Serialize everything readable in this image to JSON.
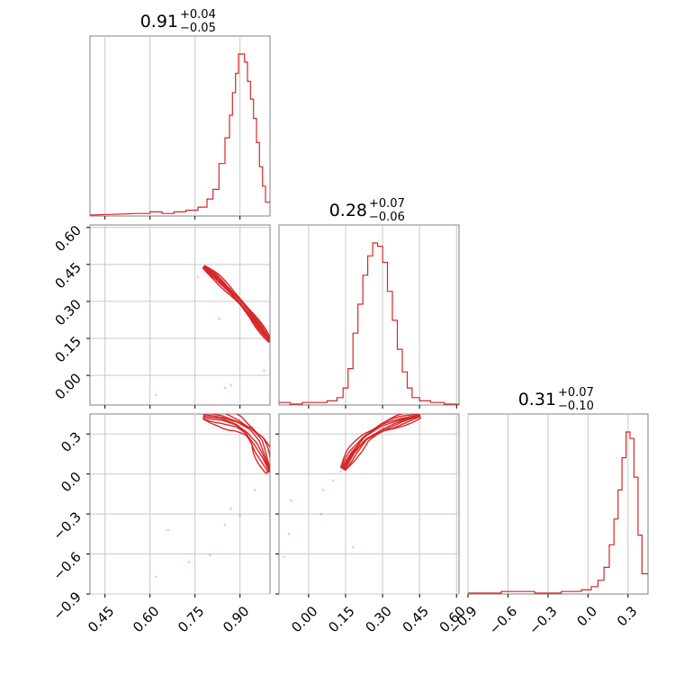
{
  "accent_color": "#d62728",
  "chart_data": {
    "type": "corner",
    "parameters": [
      "p1",
      "p2",
      "p3"
    ],
    "grid": true,
    "titles": [
      {
        "value": "0.91",
        "plus": "+0.04",
        "minus": "−0.05"
      },
      {
        "value": "0.28",
        "plus": "+0.07",
        "minus": "−0.06"
      },
      {
        "value": "0.31",
        "plus": "+0.07",
        "minus": "−0.10"
      }
    ],
    "axes": {
      "p1": {
        "range": [
          0.4,
          1.0
        ],
        "ticks": [
          0.45,
          0.6,
          0.75,
          0.9
        ],
        "ticklabels": [
          "0.45",
          "0.60",
          "0.75",
          "0.90"
        ]
      },
      "p2": {
        "range": [
          -0.12,
          0.61
        ],
        "ticks": [
          0.0,
          0.15,
          0.3,
          0.45,
          0.6
        ],
        "ticklabels": [
          "0.00",
          "0.15",
          "0.30",
          "0.45",
          "0.60"
        ],
        "y_ticklabels": [
          "0.00",
          "0.15",
          "0.30",
          "0.45",
          "0.60"
        ]
      },
      "p3": {
        "range": [
          -0.9,
          0.45
        ],
        "ticks": [
          -0.9,
          -0.6,
          -0.3,
          0.0,
          0.3
        ],
        "ticklabels": [
          "−0.9",
          "−0.6",
          "−0.3",
          "0.0",
          "0.3"
        ]
      }
    },
    "histograms": [
      {
        "param": "p1",
        "x": [
          0.58,
          0.62,
          0.66,
          0.7,
          0.74,
          0.78,
          0.8,
          0.82,
          0.84,
          0.86,
          0.87,
          0.88,
          0.89,
          0.9,
          0.91,
          0.92,
          0.93,
          0.94,
          0.95,
          0.96,
          0.97,
          0.98,
          0.99
        ],
        "density": [
          0.01,
          0.02,
          0.01,
          0.02,
          0.03,
          0.05,
          0.1,
          0.16,
          0.32,
          0.48,
          0.62,
          0.76,
          0.88,
          1.0,
          1.0,
          0.95,
          0.83,
          0.72,
          0.6,
          0.45,
          0.3,
          0.18,
          0.08
        ]
      },
      {
        "param": "p2",
        "x": [
          -0.1,
          -0.05,
          0.0,
          0.05,
          0.1,
          0.13,
          0.15,
          0.17,
          0.19,
          0.21,
          0.23,
          0.25,
          0.27,
          0.29,
          0.31,
          0.33,
          0.35,
          0.37,
          0.39,
          0.41,
          0.43,
          0.47,
          0.52,
          0.58
        ],
        "density": [
          0.01,
          0.0,
          0.01,
          0.01,
          0.02,
          0.04,
          0.1,
          0.22,
          0.44,
          0.62,
          0.8,
          0.92,
          1.0,
          0.98,
          0.88,
          0.7,
          0.52,
          0.34,
          0.2,
          0.1,
          0.04,
          0.02,
          0.01,
          0.0
        ]
      },
      {
        "param": "p3",
        "x": [
          -0.88,
          -0.7,
          -0.6,
          -0.5,
          -0.3,
          -0.1,
          0.0,
          0.05,
          0.1,
          0.14,
          0.18,
          0.21,
          0.24,
          0.27,
          0.3,
          0.33,
          0.36,
          0.39,
          0.42
        ],
        "density": [
          0.0,
          0.0,
          0.01,
          0.01,
          0.0,
          0.01,
          0.02,
          0.04,
          0.08,
          0.16,
          0.3,
          0.46,
          0.64,
          0.84,
          1.0,
          0.96,
          0.72,
          0.36,
          0.12
        ]
      }
    ],
    "contours": [
      {
        "x": "p1",
        "y": "p2",
        "ridge": [
          [
            0.78,
            0.44
          ],
          [
            0.82,
            0.4
          ],
          [
            0.86,
            0.35
          ],
          [
            0.9,
            0.3
          ],
          [
            0.94,
            0.24
          ],
          [
            0.97,
            0.19
          ],
          [
            1.0,
            0.14
          ]
        ],
        "levels": [
          0.018,
          0.012,
          0.007,
          0.003
        ]
      },
      {
        "x": "p1",
        "y": "p3",
        "ridge": [
          [
            0.78,
            0.44
          ],
          [
            0.84,
            0.42
          ],
          [
            0.89,
            0.38
          ],
          [
            0.93,
            0.32
          ],
          [
            0.96,
            0.24
          ],
          [
            0.98,
            0.14
          ],
          [
            1.0,
            0.02
          ]
        ],
        "levels": [
          0.045,
          0.03,
          0.018,
          0.008
        ]
      },
      {
        "x": "p2",
        "y": "p3",
        "ridge": [
          [
            0.14,
            0.04
          ],
          [
            0.18,
            0.16
          ],
          [
            0.23,
            0.27
          ],
          [
            0.3,
            0.35
          ],
          [
            0.37,
            0.4
          ],
          [
            0.45,
            0.44
          ]
        ],
        "levels": [
          0.03,
          0.02,
          0.012,
          0.006
        ]
      }
    ],
    "scatter": [
      {
        "x": "p1",
        "y": "p2",
        "points": [
          [
            0.78,
            0.44
          ],
          [
            0.8,
            0.43
          ],
          [
            0.62,
            -0.08
          ],
          [
            0.85,
            -0.05
          ],
          [
            0.87,
            -0.04
          ],
          [
            0.83,
            0.23
          ],
          [
            0.76,
            0.4
          ],
          [
            0.81,
            0.42
          ],
          [
            0.98,
            0.02
          ]
        ]
      },
      {
        "x": "p1",
        "y": "p3",
        "points": [
          [
            0.62,
            -0.77
          ],
          [
            0.66,
            -0.42
          ],
          [
            0.73,
            -0.66
          ],
          [
            0.8,
            -0.61
          ],
          [
            0.85,
            -0.38
          ],
          [
            0.87,
            -0.26
          ],
          [
            0.9,
            -0.31
          ],
          [
            0.95,
            -0.12
          ],
          [
            0.99,
            0.0
          ],
          [
            0.82,
            0.44
          ]
        ]
      },
      {
        "x": "p2",
        "y": "p3",
        "points": [
          [
            -0.1,
            -0.62
          ],
          [
            -0.08,
            -0.45
          ],
          [
            0.06,
            -0.12
          ],
          [
            0.1,
            -0.05
          ],
          [
            0.13,
            0.02
          ],
          [
            0.05,
            -0.3
          ],
          [
            -0.07,
            -0.2
          ],
          [
            0.16,
            0.1
          ],
          [
            0.18,
            -0.55
          ]
        ]
      }
    ]
  }
}
